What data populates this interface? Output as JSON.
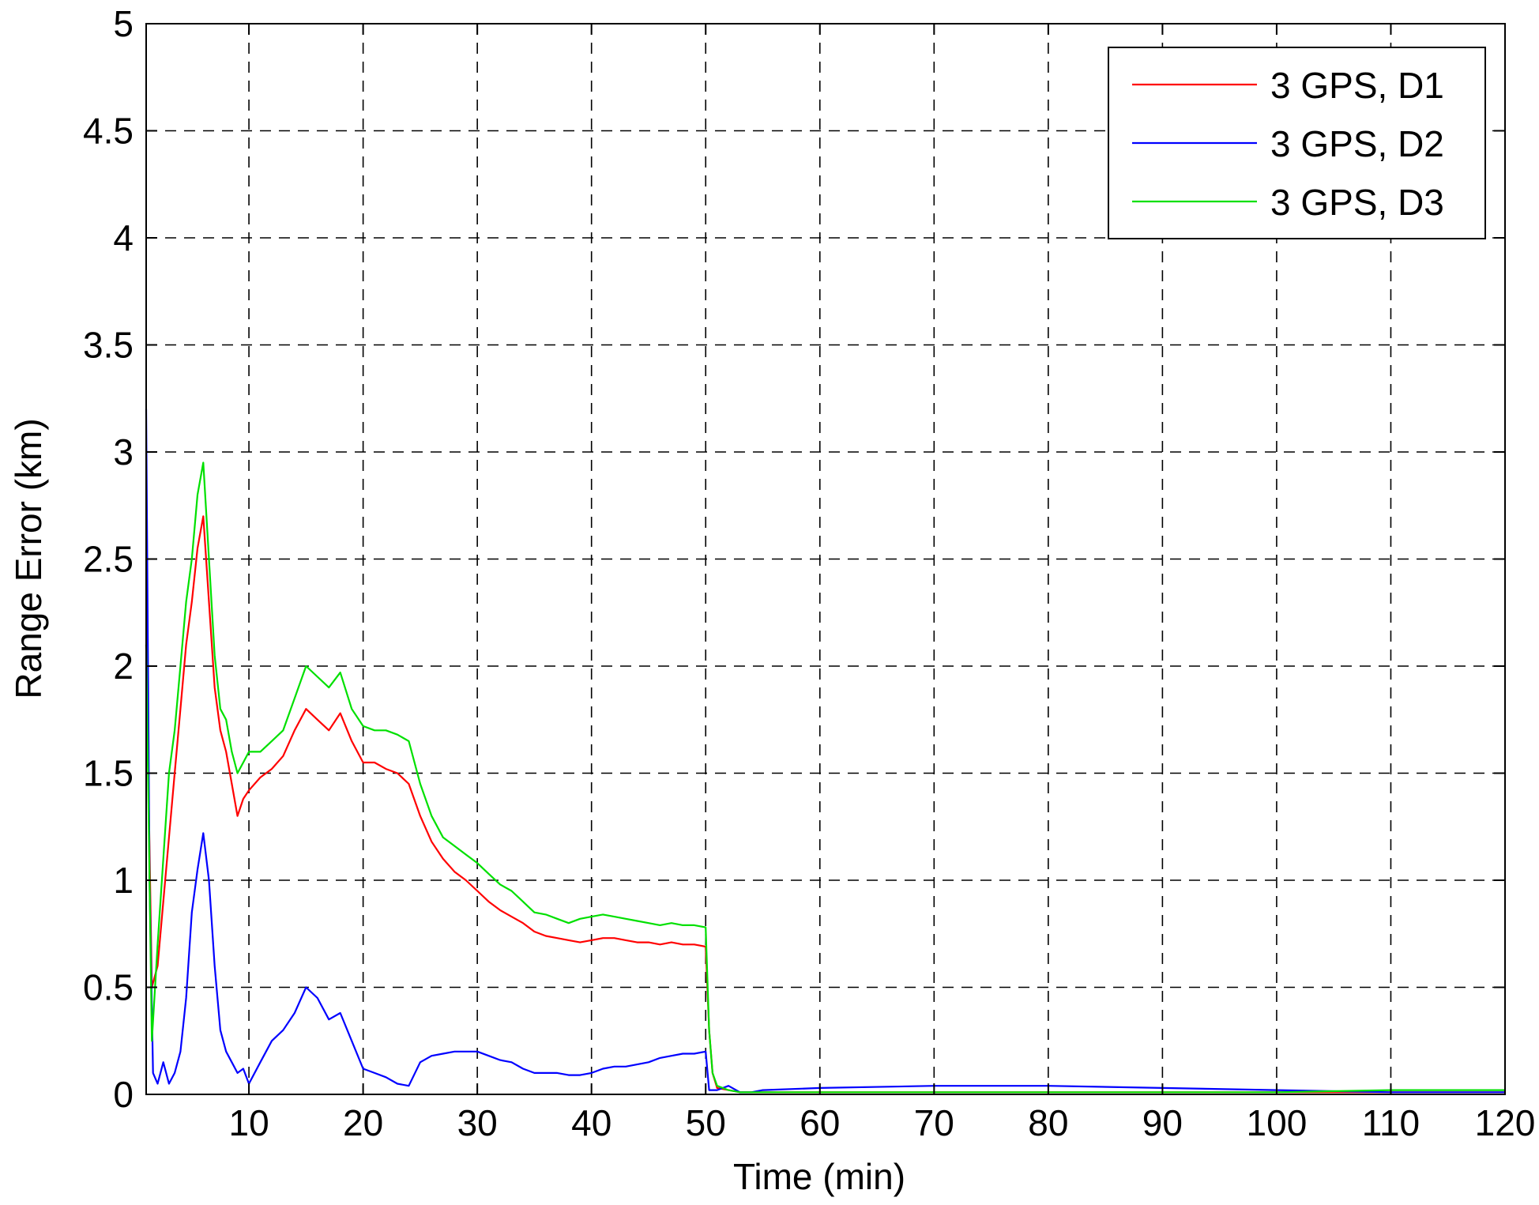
{
  "chart_data": {
    "type": "line",
    "title": "",
    "xlabel": "Time (min)",
    "ylabel": "Range Error (km)",
    "xlim": [
      1,
      120
    ],
    "ylim": [
      0,
      5
    ],
    "xticks": [
      10,
      20,
      30,
      40,
      50,
      60,
      70,
      80,
      90,
      100,
      110,
      120
    ],
    "yticks": [
      0,
      0.5,
      1,
      1.5,
      2,
      2.5,
      3,
      3.5,
      4,
      4.5,
      5
    ],
    "ytick_labels": [
      "0",
      "0.5",
      "1",
      "1.5",
      "2",
      "2.5",
      "3",
      "3.5",
      "4",
      "4.5",
      "5"
    ],
    "grid": true,
    "legend_position": "top-right",
    "series": [
      {
        "name": "3 GPS, D1",
        "color": "#ff0000",
        "x": [
          1,
          1.5,
          2,
          2.5,
          3,
          3.5,
          4,
          4.5,
          5,
          5.5,
          6,
          6.5,
          7,
          7.5,
          8,
          8.5,
          9,
          9.5,
          10,
          11,
          12,
          13,
          14,
          15,
          16,
          17,
          18,
          19,
          20,
          21,
          22,
          23,
          24,
          25,
          26,
          27,
          28,
          29,
          30,
          31,
          32,
          33,
          34,
          35,
          36,
          37,
          38,
          39,
          40,
          41,
          42,
          43,
          44,
          45,
          46,
          47,
          48,
          49,
          50,
          50.3,
          50.6,
          51,
          52,
          53,
          54,
          55,
          60,
          70,
          80,
          90,
          100,
          110,
          120
        ],
        "y": [
          2.1,
          0.5,
          0.6,
          0.9,
          1.2,
          1.5,
          1.8,
          2.1,
          2.3,
          2.55,
          2.7,
          2.3,
          1.9,
          1.7,
          1.6,
          1.45,
          1.3,
          1.38,
          1.42,
          1.48,
          1.52,
          1.58,
          1.7,
          1.8,
          1.75,
          1.7,
          1.78,
          1.65,
          1.55,
          1.55,
          1.52,
          1.5,
          1.45,
          1.3,
          1.18,
          1.1,
          1.04,
          1.0,
          0.95,
          0.9,
          0.86,
          0.83,
          0.8,
          0.76,
          0.74,
          0.73,
          0.72,
          0.71,
          0.72,
          0.73,
          0.73,
          0.72,
          0.71,
          0.71,
          0.7,
          0.71,
          0.7,
          0.7,
          0.69,
          0.3,
          0.1,
          0.03,
          0.02,
          0.01,
          0.01,
          0.01,
          0.01,
          0.01,
          0.01,
          0.01,
          0.01,
          0.01,
          0.01
        ]
      },
      {
        "name": "3 GPS, D2",
        "color": "#0000ff",
        "x": [
          1,
          1.3,
          1.6,
          2,
          2.5,
          3,
          3.5,
          4,
          4.5,
          5,
          5.5,
          6,
          6.5,
          7,
          7.5,
          8,
          8.5,
          9,
          9.5,
          10,
          11,
          12,
          13,
          14,
          15,
          16,
          17,
          18,
          19,
          20,
          21,
          22,
          23,
          24,
          25,
          26,
          27,
          28,
          29,
          30,
          31,
          32,
          33,
          34,
          35,
          36,
          37,
          38,
          39,
          40,
          41,
          42,
          43,
          44,
          45,
          46,
          47,
          48,
          49,
          50,
          50.3,
          51,
          52,
          53,
          54,
          55,
          60,
          70,
          80,
          90,
          100,
          110,
          120
        ],
        "y": [
          3.2,
          1.0,
          0.1,
          0.05,
          0.15,
          0.05,
          0.1,
          0.2,
          0.45,
          0.85,
          1.05,
          1.22,
          1.0,
          0.6,
          0.3,
          0.2,
          0.15,
          0.1,
          0.12,
          0.05,
          0.15,
          0.25,
          0.3,
          0.38,
          0.5,
          0.45,
          0.35,
          0.38,
          0.25,
          0.12,
          0.1,
          0.08,
          0.05,
          0.04,
          0.15,
          0.18,
          0.19,
          0.2,
          0.2,
          0.2,
          0.18,
          0.16,
          0.15,
          0.12,
          0.1,
          0.1,
          0.1,
          0.09,
          0.09,
          0.1,
          0.12,
          0.13,
          0.13,
          0.14,
          0.15,
          0.17,
          0.18,
          0.19,
          0.19,
          0.2,
          0.02,
          0.02,
          0.04,
          0.01,
          0.01,
          0.02,
          0.03,
          0.04,
          0.04,
          0.03,
          0.02,
          0.01,
          0.01
        ]
      },
      {
        "name": "3 GPS, D3",
        "color": "#00e000",
        "x": [
          1,
          1.5,
          2,
          2.5,
          3,
          3.5,
          4,
          4.5,
          5,
          5.5,
          6,
          6.5,
          7,
          7.5,
          8,
          8.5,
          9,
          9.5,
          10,
          11,
          12,
          13,
          14,
          15,
          16,
          17,
          18,
          19,
          20,
          21,
          22,
          23,
          24,
          25,
          26,
          27,
          28,
          29,
          30,
          31,
          32,
          33,
          34,
          35,
          36,
          37,
          38,
          39,
          40,
          41,
          42,
          43,
          44,
          45,
          46,
          47,
          48,
          49,
          50,
          50.3,
          50.6,
          51,
          52,
          53,
          54,
          55,
          60,
          70,
          80,
          90,
          100,
          110,
          120
        ],
        "y": [
          2.1,
          0.25,
          0.7,
          1.1,
          1.5,
          1.7,
          2.0,
          2.3,
          2.5,
          2.8,
          2.95,
          2.5,
          2.05,
          1.8,
          1.75,
          1.6,
          1.5,
          1.55,
          1.6,
          1.6,
          1.65,
          1.7,
          1.85,
          2.0,
          1.95,
          1.9,
          1.97,
          1.8,
          1.72,
          1.7,
          1.7,
          1.68,
          1.65,
          1.45,
          1.3,
          1.2,
          1.16,
          1.12,
          1.08,
          1.03,
          0.98,
          0.95,
          0.9,
          0.85,
          0.84,
          0.82,
          0.8,
          0.82,
          0.83,
          0.84,
          0.83,
          0.82,
          0.81,
          0.8,
          0.79,
          0.8,
          0.79,
          0.79,
          0.78,
          0.3,
          0.1,
          0.04,
          0.02,
          0.01,
          0.01,
          0.01,
          0.01,
          0.01,
          0.01,
          0.01,
          0.01,
          0.02,
          0.02
        ]
      }
    ]
  }
}
